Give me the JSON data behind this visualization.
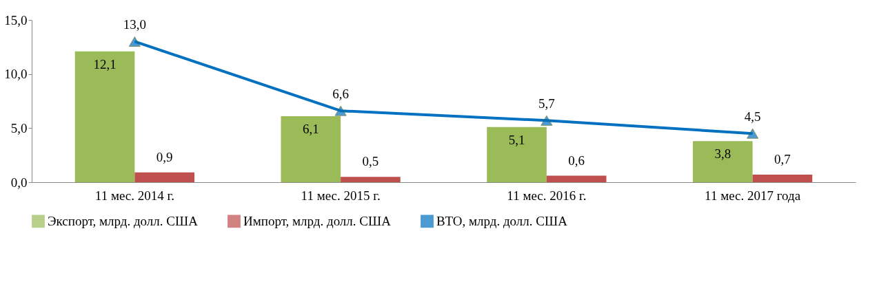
{
  "chart_data": {
    "type": "bar",
    "categories": [
      "11 мес. 2014 г.",
      "11 мес. 2015 г.",
      "11 мес. 2016 г.",
      "11 мес. 2017 года"
    ],
    "series": [
      {
        "name": "Экспорт, млрд. долл. США",
        "color": "#9bbb59",
        "values": [
          12.1,
          6.1,
          5.1,
          3.8
        ],
        "value_labels": [
          "12,1",
          "6,1",
          "5,1",
          "3,8"
        ]
      },
      {
        "name": "Импорт, млрд. долл. США",
        "color": "#c0504d",
        "values": [
          0.9,
          0.5,
          0.6,
          0.7
        ],
        "value_labels": [
          "0,9",
          "0,5",
          "0,6",
          "0,7"
        ]
      },
      {
        "name": "ВТО, млрд. долл. США",
        "type": "line",
        "color": "#0070c0",
        "marker": "triangle",
        "values": [
          13.0,
          6.6,
          5.7,
          4.5
        ],
        "value_labels": [
          "13,0",
          "6,6",
          "5,7",
          "4,5"
        ]
      }
    ],
    "ylim": [
      0,
      15
    ],
    "yticks": [
      {
        "value": 0,
        "label": "0,0"
      },
      {
        "value": 5,
        "label": "5,0"
      },
      {
        "value": 10,
        "label": "10,0"
      },
      {
        "value": 15,
        "label": "15,0"
      }
    ],
    "grid": false,
    "legend": "bottom"
  }
}
